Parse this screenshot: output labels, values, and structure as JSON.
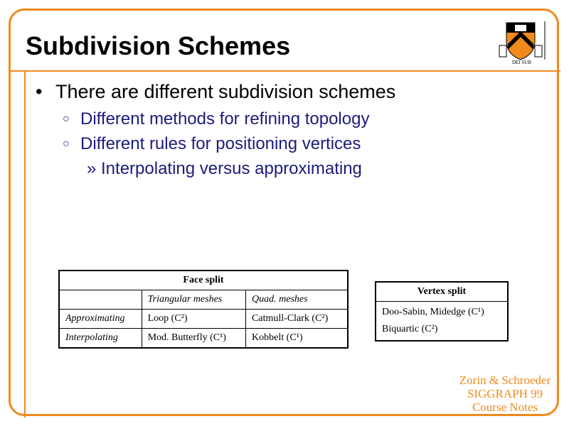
{
  "title": "Subdivision Schemes",
  "bullets": {
    "main": "There are different subdivision schemes",
    "sub1": "Different methods for refining topology",
    "sub2": "Different rules for positioning vertices",
    "subsub": "Interpolating versus approximating"
  },
  "face_split": {
    "header": "Face split",
    "col1": "Triangular meshes",
    "col2": "Quad. meshes",
    "rows": [
      {
        "label": "Approximating",
        "tri": "Loop (C²)",
        "quad": "Catmull-Clark (C²)"
      },
      {
        "label": "Interpolating",
        "tri": "Mod. Butterfly (C¹)",
        "quad": "Kobbelt (C¹)"
      }
    ]
  },
  "vertex_split": {
    "header": "Vertex split",
    "line1": "Doo-Sabin, Midedge (C¹)",
    "line2": "Biquartic (C²)"
  },
  "footer": {
    "line1": "Zorin & Schroeder",
    "line2": "SIGGRAPH 99",
    "line3": "Course Notes"
  },
  "colors": {
    "accent": "#f08a1c",
    "subtext": "#1c1c7a"
  },
  "logo": "princeton-shield-logo"
}
